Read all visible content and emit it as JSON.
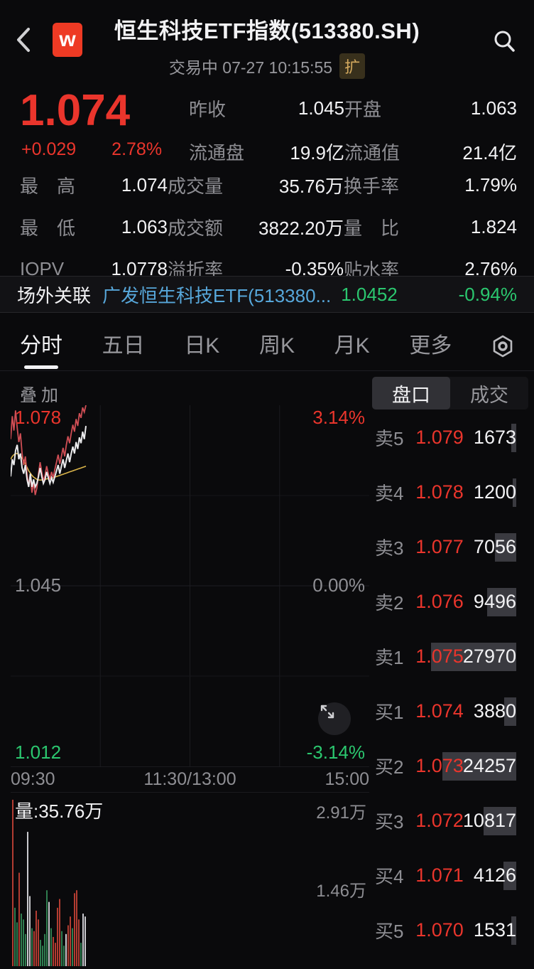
{
  "colors": {
    "red": "#ea352c",
    "green": "#2bc76f",
    "blue": "#57a7da",
    "gold": "#d3a95e",
    "white_line": "#eaeaec",
    "index_line": "#cf4e55",
    "avg_line": "#d9b44a"
  },
  "header": {
    "title": "恒生科技ETF指数(513380.SH)",
    "status_text": "交易中 07-27 10:15:55",
    "badge": "扩",
    "logo_letter": "w"
  },
  "quote": {
    "price": "1.074",
    "change": "+0.029",
    "change_pct": "2.78%",
    "top": [
      {
        "label": "昨收",
        "value": "1.045"
      },
      {
        "label": "开盘",
        "value": "1.063"
      },
      {
        "label": "流通盘",
        "value": "19.9亿"
      },
      {
        "label": "流通值",
        "value": "21.4亿"
      }
    ],
    "rows": [
      {
        "label": "最　高",
        "value": "1.074"
      },
      {
        "label": "成交量",
        "value": "35.76万"
      },
      {
        "label": "换手率",
        "value": "1.79%"
      },
      {
        "label": "最　低",
        "value": "1.063"
      },
      {
        "label": "成交额",
        "value": "3822.20万"
      },
      {
        "label": "量　比",
        "value": "1.824"
      },
      {
        "label": "IOPV",
        "value": "1.0778"
      },
      {
        "label": "溢折率",
        "value": "-0.35%"
      },
      {
        "label": "贴水率",
        "value": "2.76%"
      }
    ]
  },
  "related": {
    "caption": "场外关联",
    "name": "广发恒生科技ETF(513380...",
    "price": "1.0452",
    "pct": "-0.94%"
  },
  "tabs": {
    "items": [
      {
        "label": "分时"
      },
      {
        "label": "五日"
      },
      {
        "label": "日K"
      },
      {
        "label": "周K"
      },
      {
        "label": "月K"
      },
      {
        "label": "更多"
      }
    ]
  },
  "chart": {
    "overlay_label": "叠加",
    "y_top": "1.078",
    "y_top_pct": "3.14%",
    "y_mid": "1.045",
    "y_mid_pct": "0.00%",
    "y_bottom": "1.012",
    "y_bottom_pct": "-3.14%",
    "x_labels": [
      "09:30",
      "11:30/13:00",
      "15:00"
    ],
    "pct_max": 3.14,
    "pct_min": -3.14,
    "progress": 0.21,
    "series": {
      "etf_pct": [
        1.9,
        2.2,
        2.1,
        2.35,
        2.45,
        2.2,
        2.3,
        2.05,
        1.95,
        2.1,
        1.85,
        1.72,
        1.95,
        1.72,
        1.85,
        1.72,
        1.78,
        1.9,
        2.05,
        1.9,
        1.78,
        1.85,
        1.98,
        1.88,
        1.78,
        1.88,
        1.8,
        1.9,
        2.0,
        2.1,
        1.95,
        2.08,
        2.2,
        2.05,
        2.18,
        2.3,
        2.15,
        2.3,
        2.42,
        2.3,
        2.5,
        2.38,
        2.58,
        2.48,
        2.68,
        2.55,
        2.78
      ],
      "index_pct": [
        2.55,
        2.95,
        2.7,
        3.05,
        2.75,
        2.5,
        2.65,
        2.3,
        2.1,
        2.25,
        1.95,
        1.72,
        1.9,
        1.62,
        1.8,
        1.58,
        1.7,
        1.95,
        2.15,
        1.98,
        1.82,
        1.92,
        2.08,
        1.95,
        1.85,
        1.98,
        1.88,
        2.02,
        2.15,
        2.28,
        2.12,
        2.25,
        2.4,
        2.25,
        2.45,
        2.6,
        2.48,
        2.65,
        2.8,
        2.68,
        2.9,
        2.78,
        3.0,
        2.92,
        3.1,
        3.02,
        3.14
      ],
      "avg_pct": [
        2.2,
        2.25,
        2.28,
        2.3,
        2.3,
        2.28,
        2.26,
        2.22,
        2.18,
        2.12,
        2.06,
        2.0,
        1.96,
        1.92,
        1.89,
        1.87,
        1.85,
        1.84,
        1.84,
        1.84,
        1.85,
        1.85,
        1.86,
        1.86,
        1.87,
        1.87,
        1.88,
        1.89,
        1.9,
        1.91,
        1.92,
        1.93,
        1.94,
        1.95,
        1.96,
        1.97,
        1.98,
        1.99,
        2.0,
        2.01,
        2.02,
        2.03,
        2.04,
        2.05,
        2.06,
        2.07,
        2.08
      ]
    },
    "volume_title": "量:35.76万",
    "vol_label_top": "2.91万",
    "vol_label_mid": "1.46万",
    "vol_scale": 2.91,
    "volume_bars": [
      {
        "v": 2.85,
        "c": "r"
      },
      {
        "v": 1.0,
        "c": "g"
      },
      {
        "v": 0.75,
        "c": "g"
      },
      {
        "v": 1.6,
        "c": "r"
      },
      {
        "v": 0.9,
        "c": "g"
      },
      {
        "v": 0.8,
        "c": "g"
      },
      {
        "v": 0.55,
        "c": "g"
      },
      {
        "v": 2.3,
        "c": "w"
      },
      {
        "v": 1.2,
        "c": "w"
      },
      {
        "v": 0.65,
        "c": "g"
      },
      {
        "v": 0.6,
        "c": "r"
      },
      {
        "v": 0.95,
        "c": "r"
      },
      {
        "v": 0.8,
        "c": "r"
      },
      {
        "v": 0.45,
        "c": "g"
      },
      {
        "v": 0.35,
        "c": "g"
      },
      {
        "v": 0.55,
        "c": "g"
      },
      {
        "v": 1.3,
        "c": "g"
      },
      {
        "v": 1.1,
        "c": "w"
      },
      {
        "v": 0.65,
        "c": "g"
      },
      {
        "v": 0.5,
        "c": "r"
      },
      {
        "v": 0.4,
        "c": "r"
      },
      {
        "v": 1.0,
        "c": "r"
      },
      {
        "v": 1.15,
        "c": "r"
      },
      {
        "v": 0.6,
        "c": "g"
      },
      {
        "v": 0.35,
        "c": "g"
      },
      {
        "v": 0.55,
        "c": "w"
      },
      {
        "v": 0.7,
        "c": "r"
      },
      {
        "v": 0.85,
        "c": "r"
      },
      {
        "v": 0.65,
        "c": "g"
      },
      {
        "v": 1.25,
        "c": "r"
      },
      {
        "v": 1.3,
        "c": "r"
      },
      {
        "v": 0.8,
        "c": "r"
      },
      {
        "v": 0.4,
        "c": "g"
      },
      {
        "v": 0.9,
        "c": "w"
      },
      {
        "v": 0.85,
        "c": "w"
      }
    ],
    "bar_colors": {
      "r": "#b23c31",
      "g": "#2f7d4f",
      "w": "#c9c9ce"
    }
  },
  "order_book": {
    "tab_bid": "盘口",
    "tab_trades": "成交",
    "max_vol": 27970,
    "sells": [
      {
        "label": "卖5",
        "price": "1.079",
        "vol": "1673"
      },
      {
        "label": "卖4",
        "price": "1.078",
        "vol": "1200"
      },
      {
        "label": "卖3",
        "price": "1.077",
        "vol": "7056"
      },
      {
        "label": "卖2",
        "price": "1.076",
        "vol": "9496"
      },
      {
        "label": "卖1",
        "price": "1.075",
        "vol": "27970"
      }
    ],
    "buys": [
      {
        "label": "买1",
        "price": "1.074",
        "vol": "3880"
      },
      {
        "label": "买2",
        "price": "1.073",
        "vol": "24257"
      },
      {
        "label": "买3",
        "price": "1.072",
        "vol": "10817"
      },
      {
        "label": "买4",
        "price": "1.071",
        "vol": "4126"
      },
      {
        "label": "买5",
        "price": "1.070",
        "vol": "1531"
      }
    ]
  }
}
